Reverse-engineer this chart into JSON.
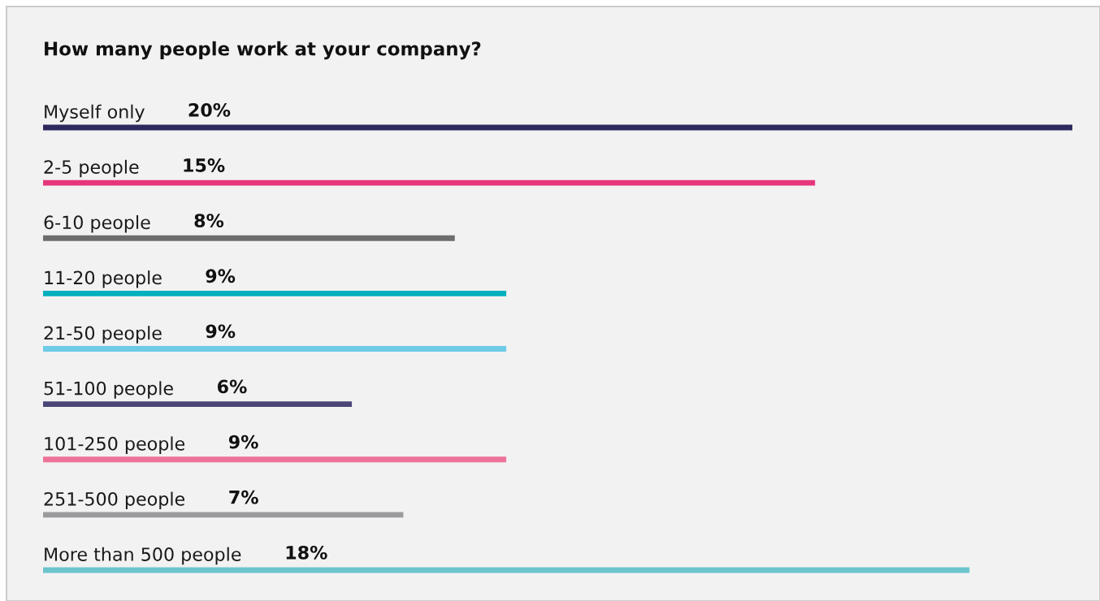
{
  "chart_data": {
    "type": "bar",
    "orientation": "horizontal",
    "title": "How many people work at your company?",
    "categories": [
      "Myself only",
      "2-5 people",
      "6-10 people",
      "11-20 people",
      "21-50 people",
      "51-100 people",
      "101-250 people",
      "251-500 people",
      "More than 500 people"
    ],
    "values": [
      20,
      15,
      8,
      9,
      9,
      6,
      9,
      7,
      18
    ],
    "value_labels": [
      "20%",
      "15%",
      "8%",
      "9%",
      "9%",
      "6%",
      "9%",
      "7%",
      "18%"
    ],
    "colors": [
      "#2e2a5e",
      "#e5367b",
      "#6d6d6d",
      "#00b0bd",
      "#6dcbe6",
      "#4a4677",
      "#ee7399",
      "#9b9b9d",
      "#6cc4cc"
    ],
    "legend": false
  }
}
